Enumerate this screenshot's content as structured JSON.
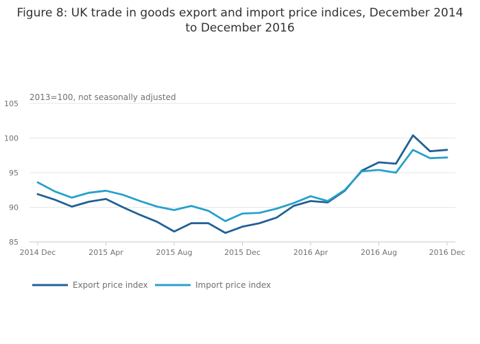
{
  "chart_data": {
    "type": "line",
    "title": "Figure 8: UK trade in goods export and import price indices, December 2014 to December 2016",
    "note": "2013=100, not seasonally adjusted",
    "xlabel": "",
    "ylabel": "",
    "ylim": [
      85,
      105
    ],
    "yticks": [
      85,
      90,
      95,
      100,
      105
    ],
    "grid": true,
    "legend_position": "bottom-left",
    "x": [
      "2014 Dec",
      "2015 Jan",
      "2015 Feb",
      "2015 Mar",
      "2015 Apr",
      "2015 May",
      "2015 Jun",
      "2015 Jul",
      "2015 Aug",
      "2015 Sep",
      "2015 Oct",
      "2015 Nov",
      "2015 Dec",
      "2016 Jan",
      "2016 Feb",
      "2016 Mar",
      "2016 Apr",
      "2016 May",
      "2016 Jun",
      "2016 Jul",
      "2016 Aug",
      "2016 Sep",
      "2016 Oct",
      "2016 Nov",
      "2016 Dec"
    ],
    "xtick_labels": [
      {
        "index": 0,
        "label": "2014 Dec"
      },
      {
        "index": 4,
        "label": "2015 Apr"
      },
      {
        "index": 8,
        "label": "2015 Aug"
      },
      {
        "index": 12,
        "label": "2015 Dec"
      },
      {
        "index": 16,
        "label": "2016 Apr"
      },
      {
        "index": 20,
        "label": "2016 Aug"
      },
      {
        "index": 24,
        "label": "2016 Dec"
      }
    ],
    "series": [
      {
        "name": "Export price index",
        "color": "#206095",
        "values": [
          91.9,
          91.1,
          90.1,
          90.8,
          91.2,
          90.0,
          88.9,
          87.9,
          86.5,
          87.7,
          87.7,
          86.3,
          87.2,
          87.7,
          88.5,
          90.2,
          90.9,
          90.7,
          92.4,
          95.3,
          96.5,
          96.3,
          100.4,
          98.1,
          98.3
        ]
      },
      {
        "name": "Import price index",
        "color": "#27a0cc",
        "values": [
          93.6,
          92.3,
          91.4,
          92.1,
          92.4,
          91.8,
          90.9,
          90.1,
          89.6,
          90.2,
          89.5,
          88.0,
          89.1,
          89.2,
          89.8,
          90.6,
          91.6,
          90.9,
          92.5,
          95.2,
          95.4,
          95.0,
          98.3,
          97.1,
          97.2
        ]
      }
    ]
  }
}
